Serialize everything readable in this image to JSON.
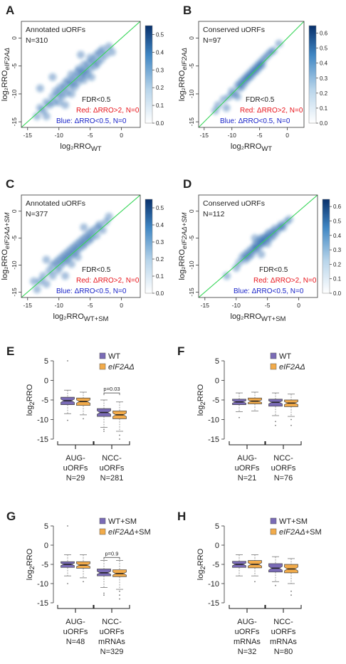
{
  "colors": {
    "diag": "#39d65a",
    "red": "#e8141b",
    "blue": "#1a25c9",
    "wt": "#7a6bb6",
    "mut": "#f2ab4a",
    "ink": "#222222"
  },
  "scatter_panels": [
    {
      "letter": "A",
      "title": "Annotated uORFs",
      "n": "N=310",
      "ylabel": "log₂RRO",
      "ylabel_sub": "eIF2AΔ",
      "xlabel": "log₂RRO",
      "xlabel_sub": "WT",
      "fdr": "FDR<0.5",
      "red": "Red: ΔRRO>2, N=0",
      "blue": "Blue: ΔRRO<0.5, N=0"
    },
    {
      "letter": "B",
      "title": "Conserved uORFs",
      "n": "N=97",
      "ylabel": "log₂RRO",
      "ylabel_sub": "eIF2AΔ",
      "xlabel": "log₂RRO",
      "xlabel_sub": "WT",
      "fdr": "FDR<0.5",
      "red": "Red: ΔRRO>2, N=0",
      "blue": "Blue: ΔRRO<0.5, N=0"
    },
    {
      "letter": "C",
      "title": "Annotated uORFs",
      "n": "N=377",
      "ylabel": "log₂RRO",
      "ylabel_sub": "eIF2AΔ+SM",
      "xlabel": "log₂RRO",
      "xlabel_sub": "WT+SM",
      "fdr": "FDR<0.5",
      "red": "Red: ΔRRO>2, N=0",
      "blue": "Blue: ΔRRO<0.5, N=0"
    },
    {
      "letter": "D",
      "title": "Conserved uORFs",
      "n": "N=112",
      "ylabel": "log₂RRO",
      "ylabel_sub": "eIF2AΔ+SM",
      "xlabel": "log₂RRO",
      "xlabel_sub": "WT+SM",
      "fdr": "FDR<0.5",
      "red": "Red: ΔRRO>2, N=0",
      "blue": "Blue: ΔRRO<0.5, N=0"
    }
  ],
  "box_panels": [
    {
      "letter": "E",
      "ylabel": "log₂RRO",
      "legend": [
        "WT",
        "eIF2AΔ"
      ],
      "pval": "p=0.03",
      "groups": [
        {
          "label": [
            "AUG-",
            "uORFs",
            "N=29"
          ]
        },
        {
          "label": [
            "NCC-",
            "uORFs",
            "N=281"
          ]
        }
      ]
    },
    {
      "letter": "F",
      "ylabel": "log₂RRO",
      "legend": [
        "WT",
        "eIF2AΔ"
      ],
      "pval": "",
      "groups": [
        {
          "label": [
            "AUG-",
            "uORFs",
            "N=21"
          ]
        },
        {
          "label": [
            "NCC-",
            "uORFs",
            "N=76"
          ]
        }
      ]
    },
    {
      "letter": "G",
      "ylabel": "log₂RRO",
      "legend": [
        "WT+SM",
        "eIF2AΔ+SM"
      ],
      "pval": "p=0.9",
      "groups": [
        {
          "label": [
            "AUG-",
            "uORFs",
            "N=48"
          ]
        },
        {
          "label": [
            "NCC-",
            "uORFs",
            "mRNAs",
            "N=329"
          ]
        }
      ]
    },
    {
      "letter": "H",
      "ylabel": "log₂RRO",
      "legend": [
        "WT+SM",
        "eIF2AΔ+SM"
      ],
      "pval": "",
      "groups": [
        {
          "label": [
            "AUG-",
            "uORFs",
            "mRNAs",
            "N=32"
          ]
        },
        {
          "label": [
            "NCC-",
            "uORFs",
            "mRNAs",
            "N=80"
          ]
        }
      ]
    }
  ],
  "chart_data": [
    {
      "type": "heatmap",
      "panel": "A",
      "xlim": [
        -16,
        3
      ],
      "ylim": [
        -16,
        3
      ],
      "x_ticks": [
        -15,
        -10,
        -5,
        0
      ],
      "y_ticks": [
        -15,
        -10,
        -5,
        0
      ],
      "colorbar": {
        "ticks": [
          0.0,
          0.1,
          0.2,
          0.3,
          0.4,
          0.5
        ],
        "range": [
          0,
          0.55
        ]
      },
      "points": [
        [
          -13.5,
          -14
        ],
        [
          -13,
          -12.5
        ],
        [
          -12.5,
          -13
        ],
        [
          -12,
          -11.5
        ],
        [
          -11.5,
          -12
        ],
        [
          -11,
          -10.5
        ],
        [
          -10.8,
          -11.5
        ],
        [
          -10.5,
          -9.5
        ],
        [
          -10,
          -10
        ],
        [
          -10,
          -11.5
        ],
        [
          -9.8,
          -8.8
        ],
        [
          -9.5,
          -10.5
        ],
        [
          -9.2,
          -9
        ],
        [
          -9,
          -8
        ],
        [
          -8.8,
          -9.8
        ],
        [
          -8.5,
          -7.5
        ],
        [
          -8.2,
          -8.5
        ],
        [
          -8,
          -10
        ],
        [
          -8,
          -6.5
        ],
        [
          -7.8,
          -7.8
        ],
        [
          -7.5,
          -8.8
        ],
        [
          -7.3,
          -7
        ],
        [
          -7,
          -6
        ],
        [
          -7,
          -8
        ],
        [
          -6.8,
          -5.5
        ],
        [
          -6.5,
          -7
        ],
        [
          -6.2,
          -6.2
        ],
        [
          -6,
          -4.8
        ],
        [
          -6,
          -7.5
        ],
        [
          -5.8,
          -5.8
        ],
        [
          -5.5,
          -6.5
        ],
        [
          -5.3,
          -4.5
        ],
        [
          -5,
          -5.5
        ],
        [
          -5,
          -3.5
        ],
        [
          -4.8,
          -7
        ],
        [
          -4.5,
          -4
        ],
        [
          -4.2,
          -5
        ],
        [
          -4,
          -3
        ],
        [
          -3.8,
          -4.5
        ],
        [
          -3.5,
          -2.5
        ],
        [
          -3.2,
          -3.8
        ],
        [
          -3,
          -2
        ],
        [
          -2.5,
          -3
        ],
        [
          -2,
          -1.5
        ],
        [
          -1.5,
          -2.5
        ],
        [
          -11,
          -7
        ],
        [
          -9,
          -12
        ],
        [
          -6.5,
          -3
        ],
        [
          -13,
          -9
        ],
        [
          -12,
          -14
        ]
      ]
    },
    {
      "type": "heatmap",
      "panel": "B",
      "xlim": [
        -16,
        3
      ],
      "ylim": [
        -16,
        3
      ],
      "x_ticks": [
        -15,
        -10,
        -5,
        0
      ],
      "y_ticks": [
        -15,
        -10,
        -5,
        0
      ],
      "colorbar": {
        "ticks": [
          0.0,
          0.1,
          0.2,
          0.3,
          0.4,
          0.5,
          0.6
        ],
        "range": [
          0,
          0.65
        ]
      },
      "points": [
        [
          -13,
          -13
        ],
        [
          -12.5,
          -12
        ],
        [
          -11.5,
          -11
        ],
        [
          -10.5,
          -10.5
        ],
        [
          -10,
          -9.5
        ],
        [
          -9.5,
          -10
        ],
        [
          -9,
          -8.5
        ],
        [
          -8.5,
          -9
        ],
        [
          -8.5,
          -8
        ],
        [
          -8,
          -7.5
        ],
        [
          -8,
          -8.5
        ],
        [
          -7.5,
          -7
        ],
        [
          -7.5,
          -7.8
        ],
        [
          -7,
          -6.5
        ],
        [
          -7,
          -7.2
        ],
        [
          -6.5,
          -6
        ],
        [
          -6.5,
          -6.8
        ],
        [
          -6,
          -5.5
        ],
        [
          -6,
          -6.2
        ],
        [
          -5.5,
          -5
        ],
        [
          -5.5,
          -5.8
        ],
        [
          -5,
          -4.5
        ],
        [
          -5,
          -5.2
        ],
        [
          -4.5,
          -4
        ],
        [
          -4.5,
          -4.8
        ],
        [
          -4,
          -3.5
        ],
        [
          -3.5,
          -3
        ],
        [
          -3,
          -2.5
        ],
        [
          -2.5,
          -2.2
        ],
        [
          -1.5,
          -1
        ],
        [
          -9,
          -10.5
        ],
        [
          -11,
          -12.5
        ]
      ]
    },
    {
      "type": "heatmap",
      "panel": "C",
      "xlim": [
        -16,
        3
      ],
      "ylim": [
        -16,
        3
      ],
      "x_ticks": [
        -15,
        -10,
        -5,
        0
      ],
      "y_ticks": [
        -15,
        -10,
        -5,
        0
      ],
      "colorbar": {
        "ticks": [
          0.0,
          0.1,
          0.2,
          0.3,
          0.4,
          0.5
        ],
        "range": [
          0,
          0.55
        ]
      },
      "points": [
        [
          -13.5,
          -14.5
        ],
        [
          -13,
          -13
        ],
        [
          -12.5,
          -12
        ],
        [
          -12,
          -13.5
        ],
        [
          -11.5,
          -11
        ],
        [
          -11,
          -12
        ],
        [
          -11,
          -10
        ],
        [
          -10.5,
          -9.5
        ],
        [
          -10.2,
          -11
        ],
        [
          -10,
          -9
        ],
        [
          -9.8,
          -10.2
        ],
        [
          -9.5,
          -8.5
        ],
        [
          -9.2,
          -9.5
        ],
        [
          -9,
          -8
        ],
        [
          -8.8,
          -9
        ],
        [
          -8.5,
          -7.5
        ],
        [
          -8.3,
          -8.5
        ],
        [
          -8,
          -7
        ],
        [
          -8,
          -9.8
        ],
        [
          -7.8,
          -8
        ],
        [
          -7.5,
          -6.5
        ],
        [
          -7.3,
          -7.5
        ],
        [
          -7,
          -6
        ],
        [
          -7,
          -8.5
        ],
        [
          -6.8,
          -7
        ],
        [
          -6.5,
          -5.5
        ],
        [
          -6.2,
          -6.5
        ],
        [
          -6,
          -5
        ],
        [
          -5.8,
          -6
        ],
        [
          -5.5,
          -4.5
        ],
        [
          -5.2,
          -5.5
        ],
        [
          -5,
          -4
        ],
        [
          -4.8,
          -5
        ],
        [
          -4.5,
          -3.5
        ],
        [
          -4,
          -4.5
        ],
        [
          -3.8,
          -3
        ],
        [
          -3.5,
          -2.5
        ],
        [
          -3,
          -3.5
        ],
        [
          -2.5,
          -2
        ],
        [
          -2,
          -1
        ],
        [
          -12,
          -9
        ],
        [
          -9,
          -12
        ],
        [
          -6,
          -3
        ],
        [
          -14,
          -13
        ]
      ]
    },
    {
      "type": "heatmap",
      "panel": "D",
      "xlim": [
        -16,
        3
      ],
      "ylim": [
        -16,
        3
      ],
      "x_ticks": [
        -15,
        -10,
        -5,
        0
      ],
      "y_ticks": [
        -15,
        -10,
        -5,
        0
      ],
      "colorbar": {
        "ticks": [
          0.0,
          0.1,
          0.2,
          0.3,
          0.4,
          0.5,
          0.6
        ],
        "range": [
          0,
          0.65
        ]
      },
      "points": [
        [
          -11.5,
          -12
        ],
        [
          -10,
          -10.5
        ],
        [
          -9.5,
          -9.5
        ],
        [
          -9,
          -8.5
        ],
        [
          -8.5,
          -9
        ],
        [
          -8.5,
          -8
        ],
        [
          -8,
          -7.5
        ],
        [
          -8,
          -8.5
        ],
        [
          -7.5,
          -7
        ],
        [
          -7.5,
          -8
        ],
        [
          -7,
          -6.5
        ],
        [
          -7,
          -7.2
        ],
        [
          -6.8,
          -6
        ],
        [
          -6.5,
          -6.8
        ],
        [
          -6.2,
          -5.5
        ],
        [
          -6,
          -6.2
        ],
        [
          -6,
          -5
        ],
        [
          -5.8,
          -5.8
        ],
        [
          -5.5,
          -4.8
        ],
        [
          -5.2,
          -5.3
        ],
        [
          -5,
          -4.5
        ],
        [
          -5,
          -6
        ],
        [
          -4.8,
          -4
        ],
        [
          -4.5,
          -5
        ],
        [
          -4.2,
          -3.8
        ],
        [
          -4,
          -4.5
        ],
        [
          -3.8,
          -3.2
        ],
        [
          -3.5,
          -3.8
        ],
        [
          -3,
          -3
        ],
        [
          -2.8,
          -2.5
        ],
        [
          -2.5,
          -3
        ],
        [
          -2,
          -2
        ],
        [
          -1.5,
          -1.5
        ],
        [
          -6,
          -8
        ],
        [
          -7,
          -5
        ]
      ]
    },
    {
      "type": "box",
      "panel": "E",
      "ylim": [
        -15,
        5
      ],
      "y_ticks": [
        -15,
        -10,
        -5,
        0,
        5
      ],
      "series": [
        {
          "name": "WT"
        },
        {
          "name": "eIF2AΔ"
        }
      ],
      "boxes": [
        {
          "group": 0,
          "series": 0,
          "q1": -6.2,
          "med": -5.2,
          "q3": -4.3,
          "lo": -8.5,
          "hi": -2.5,
          "outliers": [
            -10.2,
            5
          ]
        },
        {
          "group": 0,
          "series": 1,
          "q1": -6.4,
          "med": -5.4,
          "q3": -4.5,
          "lo": -8.8,
          "hi": -3,
          "outliers": [
            -9.8
          ]
        },
        {
          "group": 1,
          "series": 0,
          "q1": -9.2,
          "med": -8.2,
          "q3": -7.2,
          "lo": -12,
          "hi": -5,
          "outliers": [
            -13,
            -12.5
          ]
        },
        {
          "group": 1,
          "series": 1,
          "q1": -9.8,
          "med": -8.8,
          "q3": -7.8,
          "lo": -13,
          "hi": -5.5,
          "outliers": [
            -14,
            -15
          ]
        }
      ]
    },
    {
      "type": "box",
      "panel": "F",
      "ylim": [
        -15,
        5
      ],
      "y_ticks": [
        -15,
        -10,
        -5,
        0,
        5
      ],
      "series": [
        {
          "name": "WT"
        },
        {
          "name": "eIF2AΔ"
        }
      ],
      "boxes": [
        {
          "group": 0,
          "series": 0,
          "q1": -6.2,
          "med": -5.5,
          "q3": -4.8,
          "lo": -8,
          "hi": -3.2,
          "outliers": [
            -9.5
          ]
        },
        {
          "group": 0,
          "series": 1,
          "q1": -6,
          "med": -5.3,
          "q3": -4.5,
          "lo": -7.8,
          "hi": -3,
          "outliers": []
        },
        {
          "group": 1,
          "series": 0,
          "q1": -6.6,
          "med": -5.6,
          "q3": -4.8,
          "lo": -9,
          "hi": -3.2,
          "outliers": [
            -10.5,
            -11.5
          ]
        },
        {
          "group": 1,
          "series": 1,
          "q1": -6.7,
          "med": -5.8,
          "q3": -5,
          "lo": -9.2,
          "hi": -3.5,
          "outliers": [
            -10,
            -11.5
          ]
        }
      ]
    },
    {
      "type": "box",
      "panel": "G",
      "ylim": [
        -15,
        5
      ],
      "y_ticks": [
        -15,
        -10,
        -5,
        0,
        5
      ],
      "series": [
        {
          "name": "WT+SM"
        },
        {
          "name": "eIF2AΔ+SM"
        }
      ],
      "boxes": [
        {
          "group": 0,
          "series": 0,
          "q1": -5.8,
          "med": -5,
          "q3": -4.3,
          "lo": -8,
          "hi": -2.5,
          "outliers": [
            -10,
            5
          ]
        },
        {
          "group": 0,
          "series": 1,
          "q1": -6,
          "med": -5.2,
          "q3": -4.3,
          "lo": -8.5,
          "hi": -2.5,
          "outliers": [
            -9.5
          ]
        },
        {
          "group": 1,
          "series": 0,
          "q1": -8,
          "med": -7.2,
          "q3": -6.2,
          "lo": -11,
          "hi": -4,
          "outliers": [
            -12.5,
            -13
          ]
        },
        {
          "group": 1,
          "series": 1,
          "q1": -8.2,
          "med": -7.4,
          "q3": -6.4,
          "lo": -11.5,
          "hi": -4,
          "outliers": [
            -12,
            -13,
            -14
          ]
        }
      ]
    },
    {
      "type": "box",
      "panel": "H",
      "ylim": [
        -15,
        5
      ],
      "y_ticks": [
        -15,
        -10,
        -5,
        0,
        5
      ],
      "series": [
        {
          "name": "WT+SM"
        },
        {
          "name": "eIF2AΔ+SM"
        }
      ],
      "boxes": [
        {
          "group": 0,
          "series": 0,
          "q1": -5.8,
          "med": -5,
          "q3": -4.2,
          "lo": -8,
          "hi": -2.5,
          "outliers": []
        },
        {
          "group": 0,
          "series": 1,
          "q1": -5.9,
          "med": -5,
          "q3": -4,
          "lo": -8,
          "hi": -2.5,
          "outliers": [
            -9.5
          ]
        },
        {
          "group": 1,
          "series": 0,
          "q1": -7,
          "med": -6,
          "q3": -4.8,
          "lo": -9.5,
          "hi": -3,
          "outliers": [
            -10.5
          ]
        },
        {
          "group": 1,
          "series": 1,
          "q1": -7.2,
          "med": -6.2,
          "q3": -5,
          "lo": -10,
          "hi": -3.5,
          "outliers": [
            -12,
            -13
          ]
        }
      ]
    }
  ]
}
